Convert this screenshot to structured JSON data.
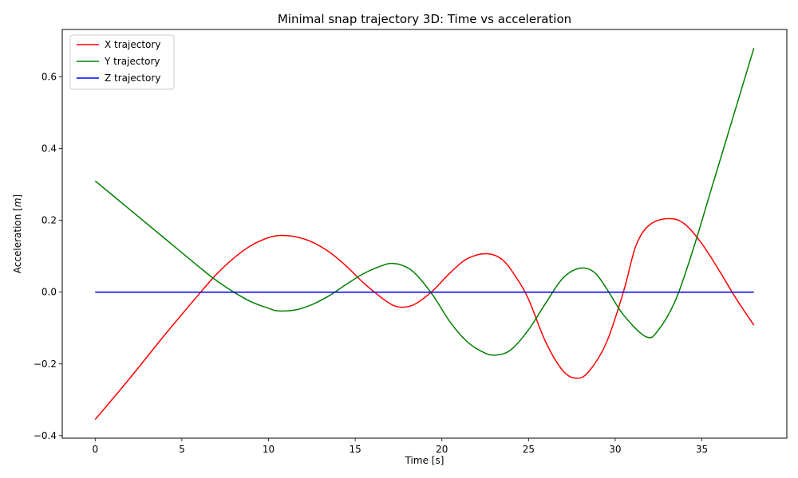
{
  "chart_data": {
    "type": "line",
    "title": "Minimal snap trajectory 3D: Time vs acceleration",
    "xlabel": "Time [s]",
    "ylabel": "Acceleration [m]",
    "ylabel_parts": {
      "prefix": "Acceleration [",
      "italic": "m",
      "suffix": "]"
    },
    "xlim": [
      -1.9,
      39.9
    ],
    "ylim": [
      -0.407,
      0.732
    ],
    "xticks": [
      0,
      5,
      10,
      15,
      20,
      25,
      30,
      35
    ],
    "xtick_labels": [
      "0",
      "5",
      "10",
      "15",
      "20",
      "25",
      "30",
      "35"
    ],
    "yticks": [
      -0.4,
      -0.2,
      0.0,
      0.2,
      0.4,
      0.6
    ],
    "ytick_labels": [
      "−0.4",
      "−0.2",
      "0.0",
      "0.2",
      "0.4",
      "0.6"
    ],
    "grid": false,
    "legend_position": "top-left",
    "series": [
      {
        "name": "X trajectory",
        "color": "#ff0000",
        "x": [
          0,
          2,
          4,
          6,
          7,
          8,
          9,
          10,
          10.7,
          11.5,
          12.5,
          13.5,
          14.5,
          15.5,
          16.5,
          17.2,
          17.8,
          18.5,
          19.5,
          20.5,
          21.5,
          22.6,
          23.5,
          24.3,
          25,
          26,
          27,
          27.8,
          28.5,
          29.5,
          30.5,
          31.2,
          32,
          33.1,
          34,
          35,
          36,
          37,
          38
        ],
        "y": [
          -0.355,
          -0.24,
          -0.12,
          -0.005,
          0.05,
          0.095,
          0.13,
          0.152,
          0.158,
          0.155,
          0.14,
          0.112,
          0.072,
          0.025,
          -0.015,
          -0.037,
          -0.042,
          -0.032,
          0.005,
          0.055,
          0.094,
          0.107,
          0.09,
          0.04,
          -0.02,
          -0.14,
          -0.22,
          -0.24,
          -0.22,
          -0.14,
          0.005,
          0.13,
          0.188,
          0.205,
          0.19,
          0.135,
          0.06,
          -0.02,
          -0.092
        ]
      },
      {
        "name": "Y trajectory",
        "color": "#008000",
        "x": [
          0,
          2,
          4,
          6,
          7,
          8,
          9,
          10,
          10.5,
          11.5,
          12.5,
          13.5,
          14.5,
          15.5,
          16.5,
          17.1,
          17.8,
          18.5,
          19.5,
          20.5,
          21.5,
          22.5,
          23.2,
          24,
          25,
          26,
          27,
          28,
          28.8,
          29.5,
          30.5,
          31.8,
          32.5,
          33.5,
          34.5,
          35.5,
          36.5,
          37.5,
          38
        ],
        "y": [
          0.31,
          0.23,
          0.15,
          0.07,
          0.032,
          0.0,
          -0.027,
          -0.045,
          -0.052,
          -0.05,
          -0.035,
          -0.01,
          0.022,
          0.052,
          0.073,
          0.08,
          0.073,
          0.05,
          -0.01,
          -0.085,
          -0.14,
          -0.17,
          -0.175,
          -0.16,
          -0.105,
          -0.03,
          0.04,
          0.067,
          0.055,
          0.01,
          -0.065,
          -0.125,
          -0.105,
          -0.02,
          0.12,
          0.28,
          0.44,
          0.6,
          0.68
        ]
      },
      {
        "name": "Z trajectory",
        "color": "#0000ff",
        "x": [
          0,
          38
        ],
        "y": [
          0.0,
          0.0
        ]
      }
    ]
  }
}
